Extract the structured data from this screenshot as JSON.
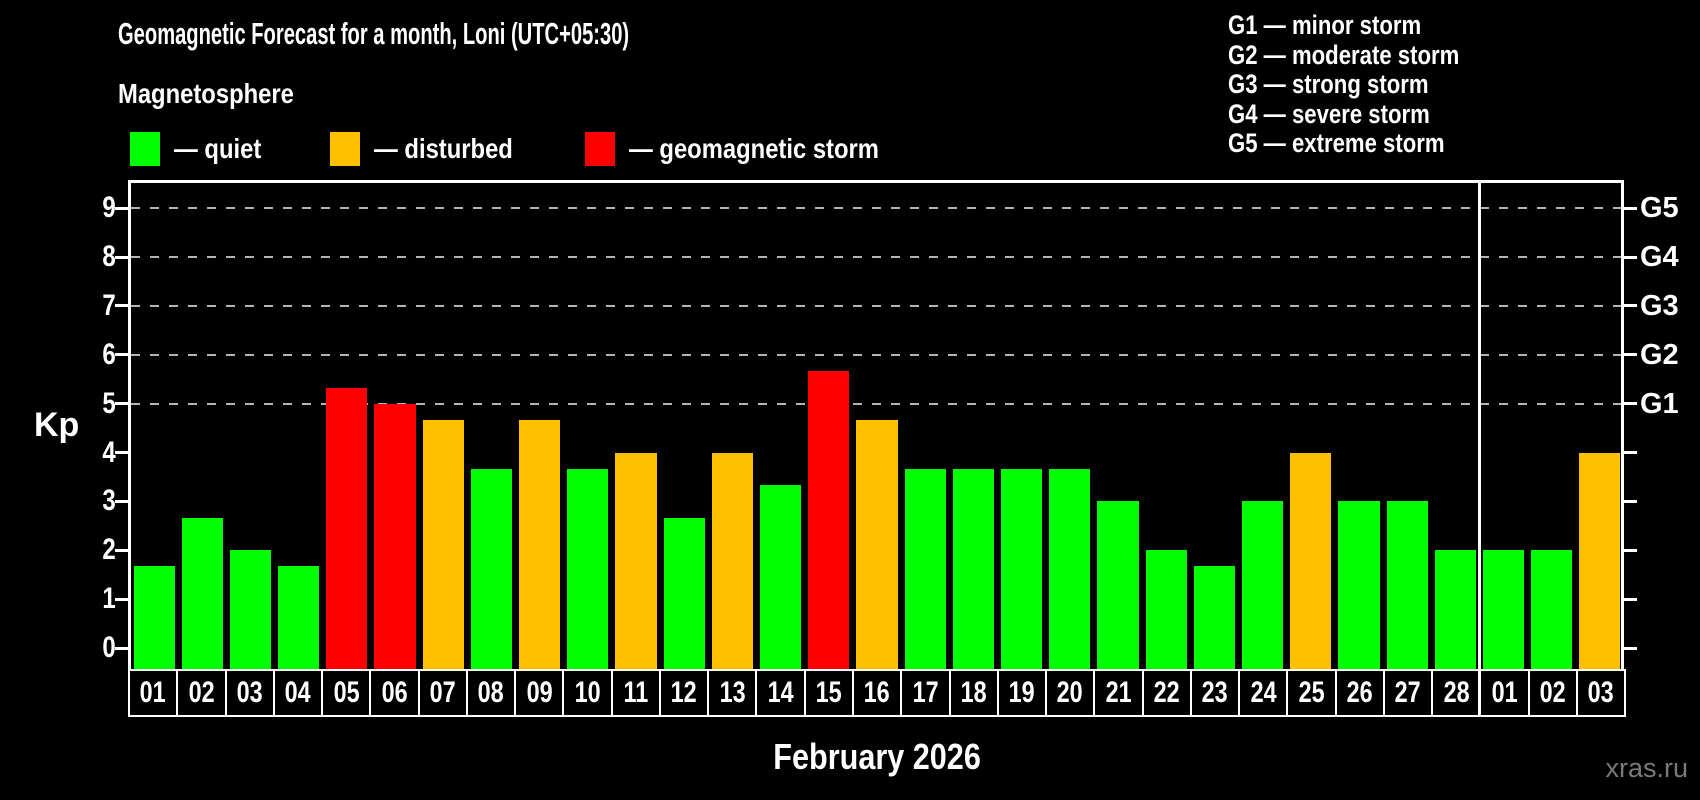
{
  "header": {
    "title": "Geomagnetic Forecast for a month, Loni (UTC+05:30)",
    "subtitle": "Magnetosphere"
  },
  "legend": {
    "items": [
      {
        "label": "— quiet",
        "status": "quiet",
        "color": "#00ff00"
      },
      {
        "label": "— disturbed",
        "status": "disturbed",
        "color": "#ffc000"
      },
      {
        "label": "— geomagnetic storm",
        "status": "storm",
        "color": "#ff0000"
      }
    ]
  },
  "g_scale_legend": {
    "items": [
      "G1 — minor storm",
      "G2 — moderate storm",
      "G3 — strong storm",
      "G4 — severe storm",
      "G5 — extreme storm"
    ]
  },
  "footer": {
    "month_label": "February 2026",
    "watermark": "xras.ru"
  },
  "chart_data": {
    "type": "bar",
    "title": "Geomagnetic Forecast for a month, Loni (UTC+05:30)",
    "ylabel": "Kp",
    "ylim": [
      0,
      9.5
    ],
    "y_ticks": [
      0,
      1,
      2,
      3,
      4,
      5,
      6,
      7,
      8,
      9
    ],
    "grid": "dashed horizontal gridlines at Kp 5,6,7,8,9 only",
    "legend_position": "top-left swatches; G-scale text top-right",
    "right_axis": [
      {
        "kp": 5,
        "label": "G1"
      },
      {
        "kp": 6,
        "label": "G2"
      },
      {
        "kp": 7,
        "label": "G3"
      },
      {
        "kp": 8,
        "label": "G4"
      },
      {
        "kp": 9,
        "label": "G5"
      }
    ],
    "february_days": 28,
    "categories": [
      "01",
      "02",
      "03",
      "04",
      "05",
      "06",
      "07",
      "08",
      "09",
      "10",
      "11",
      "12",
      "13",
      "14",
      "15",
      "16",
      "17",
      "18",
      "19",
      "20",
      "21",
      "22",
      "23",
      "24",
      "25",
      "26",
      "27",
      "28",
      "01",
      "02",
      "03"
    ],
    "values": [
      1.67,
      2.67,
      2,
      1.67,
      5.33,
      5,
      4.67,
      3.67,
      4.67,
      3.67,
      4,
      2.67,
      4,
      3.33,
      5.67,
      4.67,
      3.67,
      3.67,
      3.67,
      3.67,
      3,
      2,
      1.67,
      3,
      4,
      3,
      3,
      2,
      2,
      2,
      4
    ],
    "statuses": [
      "quiet",
      "quiet",
      "quiet",
      "quiet",
      "storm",
      "storm",
      "disturbed",
      "quiet",
      "disturbed",
      "quiet",
      "disturbed",
      "quiet",
      "disturbed",
      "quiet",
      "storm",
      "disturbed",
      "quiet",
      "quiet",
      "quiet",
      "quiet",
      "quiet",
      "quiet",
      "quiet",
      "quiet",
      "disturbed",
      "quiet",
      "quiet",
      "quiet",
      "quiet",
      "quiet",
      "disturbed"
    ],
    "status_colors": {
      "quiet": "#00ff00",
      "disturbed": "#ffc000",
      "storm": "#ff0000"
    }
  }
}
